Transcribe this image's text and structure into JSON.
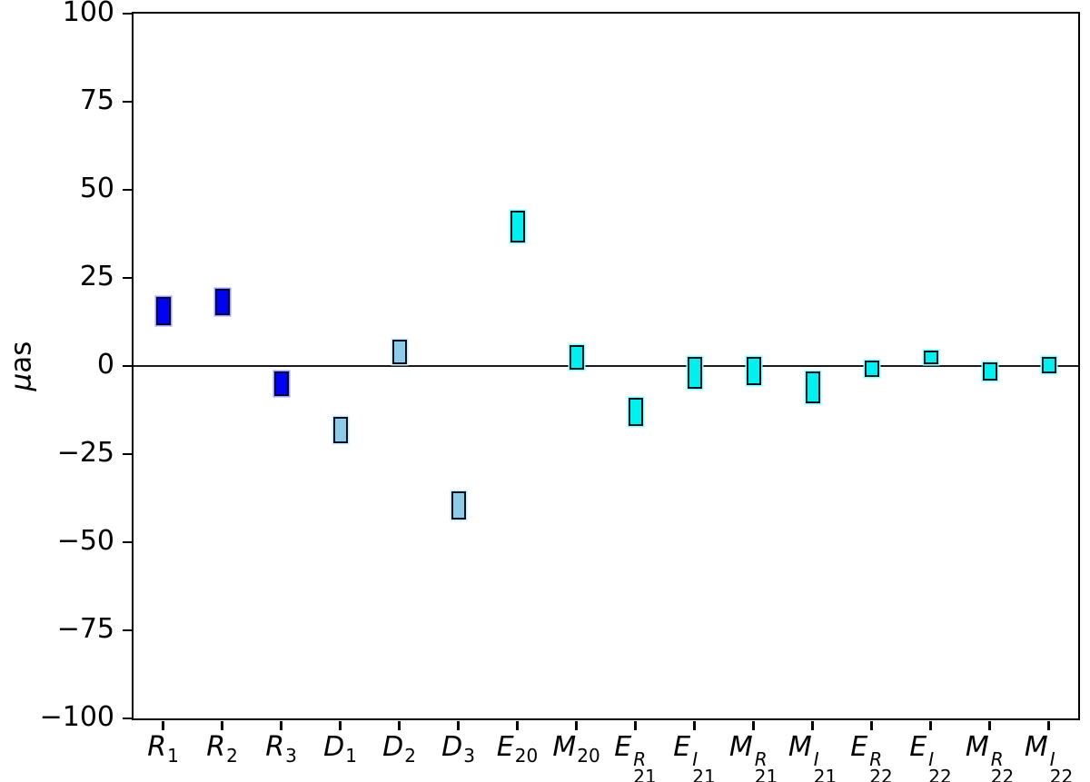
{
  "chart_data": {
    "type": "bar",
    "subtype": "floating-range-bars",
    "title": "",
    "xlabel": "",
    "ylabel": "μas",
    "ylim": [
      -100,
      100
    ],
    "grid": false,
    "legend": null,
    "zero_line_value": 0,
    "axis_color": "#000000",
    "zero_line_color": "#1a1a1a",
    "background_color": "#ffffff",
    "yticks": [
      {
        "value": 100,
        "label": "100"
      },
      {
        "value": 75,
        "label": "75"
      },
      {
        "value": 50,
        "label": "50"
      },
      {
        "value": 25,
        "label": "25"
      },
      {
        "value": 0,
        "label": "0"
      },
      {
        "value": -25,
        "label": "−25"
      },
      {
        "value": -50,
        "label": "−50"
      },
      {
        "value": -75,
        "label": "−75"
      },
      {
        "value": -100,
        "label": "−100"
      }
    ],
    "groups": {
      "R": {
        "fill": "#0202F2",
        "edge": "#000538",
        "halo": "#9C9CFF"
      },
      "D": {
        "fill": "#8FCBE6",
        "edge": "#00121F",
        "halo": "#CFE9F6"
      },
      "EM": {
        "fill": "#00F0F0",
        "edge": "#00161C",
        "halo": "#8CFFFF"
      }
    },
    "categories": [
      "R_1",
      "R_2",
      "R_3",
      "D_1",
      "D_2",
      "D_3",
      "E_20",
      "M_20",
      "E^R_21",
      "E^I_21",
      "M^R_21",
      "M^I_21",
      "E^R_22",
      "E^I_22",
      "M^R_22",
      "M^I_22"
    ],
    "points": [
      {
        "id": "R1",
        "letter": "R",
        "sup": "",
        "sub": "1",
        "group": "R",
        "min": 11.5,
        "max": 19.5
      },
      {
        "id": "R2",
        "letter": "R",
        "sup": "",
        "sub": "2",
        "group": "R",
        "min": 14.5,
        "max": 22
      },
      {
        "id": "R3",
        "letter": "R",
        "sup": "",
        "sub": "3",
        "group": "R",
        "min": -8.5,
        "max": -1.5
      },
      {
        "id": "D1",
        "letter": "D",
        "sup": "",
        "sub": "1",
        "group": "D",
        "min": -22,
        "max": -14.5
      },
      {
        "id": "D2",
        "letter": "D",
        "sup": "",
        "sub": "2",
        "group": "D",
        "min": 0.5,
        "max": 7.5
      },
      {
        "id": "D3",
        "letter": "D",
        "sup": "",
        "sub": "3",
        "group": "D",
        "min": -43.5,
        "max": -35.5
      },
      {
        "id": "E20",
        "letter": "E",
        "sup": "",
        "sub": "20",
        "group": "EM",
        "min": 35,
        "max": 44
      },
      {
        "id": "M20",
        "letter": "M",
        "sup": "",
        "sub": "20",
        "group": "EM",
        "min": -1,
        "max": 6
      },
      {
        "id": "E21R",
        "letter": "E",
        "sup": "R",
        "sub": "21",
        "group": "EM",
        "min": -17,
        "max": -9
      },
      {
        "id": "E21I",
        "letter": "E",
        "sup": "I",
        "sub": "21",
        "group": "EM",
        "min": -6.5,
        "max": 2.5
      },
      {
        "id": "M21R",
        "letter": "M",
        "sup": "R",
        "sub": "21",
        "group": "EM",
        "min": -5.5,
        "max": 2.5
      },
      {
        "id": "M21I",
        "letter": "M",
        "sup": "I",
        "sub": "21",
        "group": "EM",
        "min": -10.5,
        "max": -1.5
      },
      {
        "id": "E22R",
        "letter": "E",
        "sup": "R",
        "sub": "22",
        "group": "EM",
        "min": -3,
        "max": 1.5
      },
      {
        "id": "E22I",
        "letter": "E",
        "sup": "I",
        "sub": "22",
        "group": "EM",
        "min": 0.5,
        "max": 4.5
      },
      {
        "id": "M22R",
        "letter": "M",
        "sup": "R",
        "sub": "22",
        "group": "EM",
        "min": -4,
        "max": 1
      },
      {
        "id": "M22I",
        "letter": "M",
        "sup": "I",
        "sub": "22",
        "group": "EM",
        "min": -2,
        "max": 2.5
      }
    ]
  }
}
